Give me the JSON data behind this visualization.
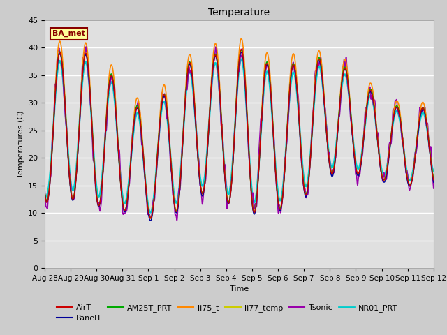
{
  "title": "Temperature",
  "ylabel": "Temperatures (C)",
  "xlabel": "Time",
  "ylim": [
    0,
    45
  ],
  "series": {
    "AirT": {
      "color": "#cc0000",
      "lw": 1.0
    },
    "PanelT": {
      "color": "#000099",
      "lw": 1.0
    },
    "AM25T_PRT": {
      "color": "#00aa00",
      "lw": 1.0
    },
    "li75_t": {
      "color": "#ff8800",
      "lw": 1.2
    },
    "li77_temp": {
      "color": "#cccc00",
      "lw": 1.0
    },
    "Tsonic": {
      "color": "#9900aa",
      "lw": 1.2
    },
    "NR01_PRT": {
      "color": "#00cccc",
      "lw": 1.8
    }
  },
  "annotation": {
    "text": "BA_met",
    "fontsize": 8,
    "color": "#880000",
    "bg": "#ffff99",
    "border": "#880000"
  },
  "xtick_labels": [
    "Aug 28",
    "Aug 29",
    "Aug 30",
    "Aug 31",
    "Sep 1",
    "Sep 2",
    "Sep 3",
    "Sep 4",
    "Sep 5",
    "Sep 6",
    "Sep 7",
    "Sep 8",
    "Sep 9",
    "Sep 10",
    "Sep 11",
    "Sep 12"
  ],
  "n_days": 15,
  "n_points": 1500
}
